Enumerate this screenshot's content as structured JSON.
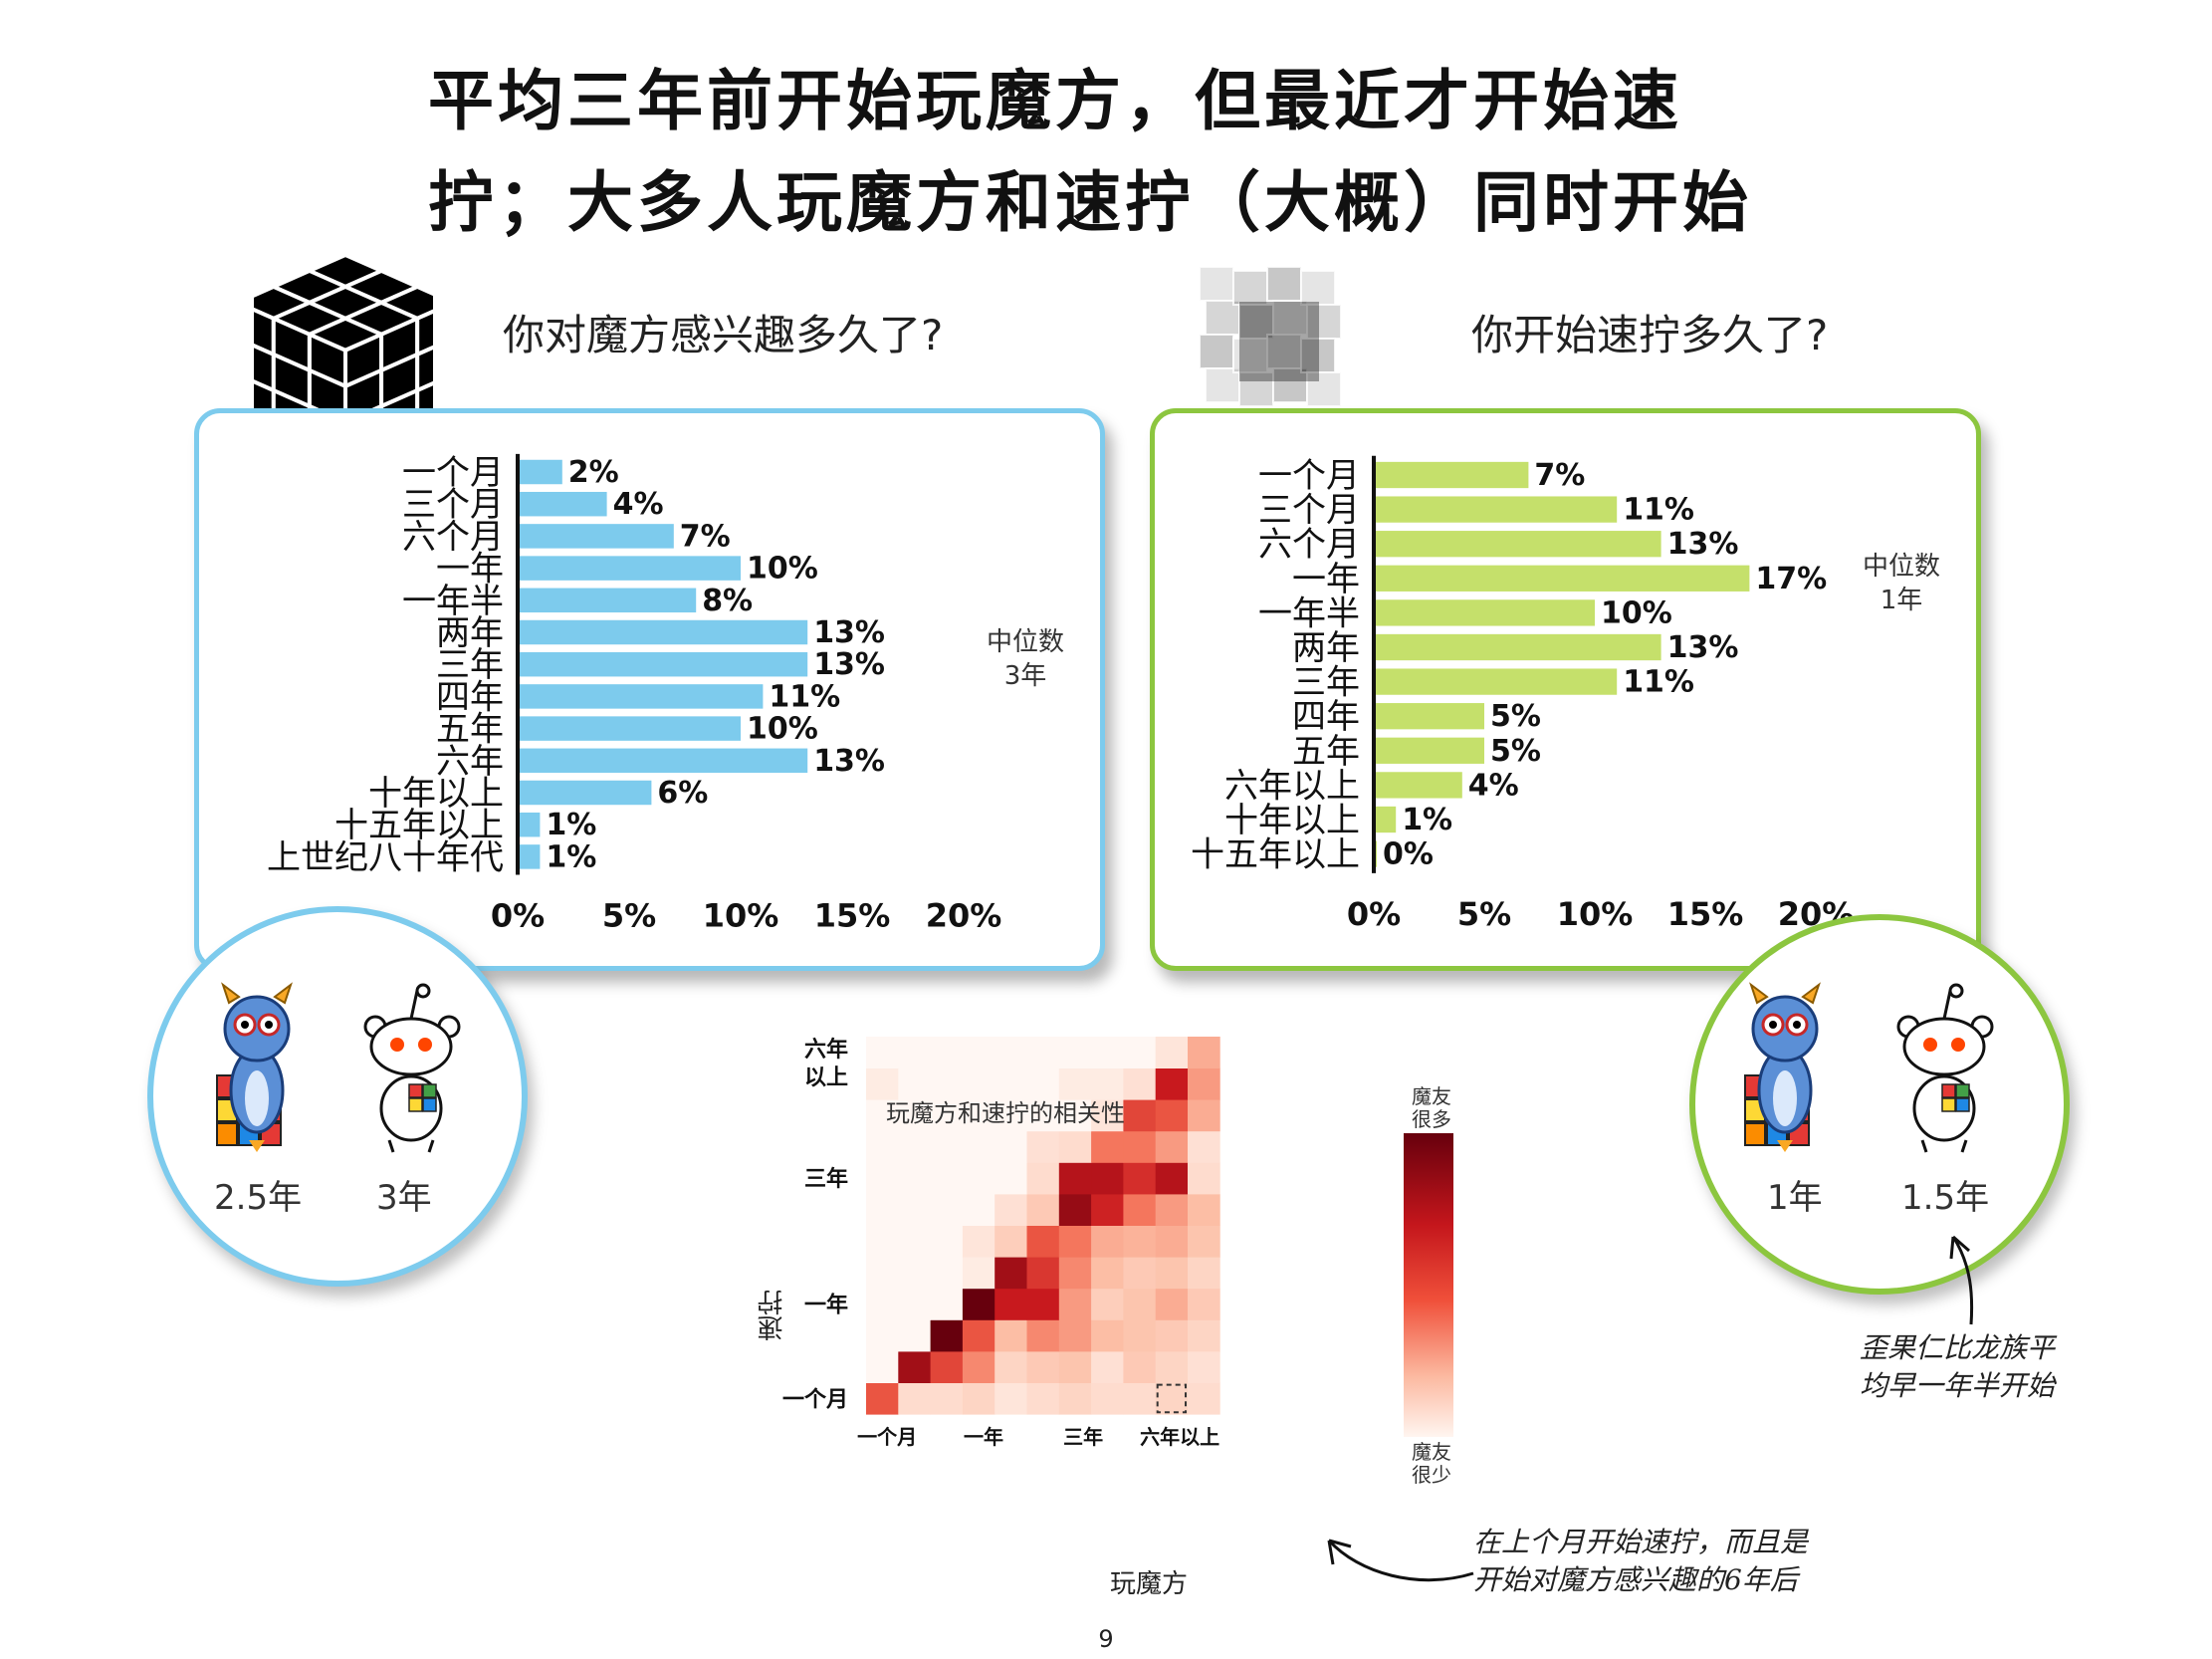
{
  "page": {
    "title_line1": "平均三年前开始玩魔方，但最近才开始速",
    "title_line2": "拧；大多人玩魔方和速拧（大概）同时开始",
    "page_number": "9"
  },
  "left": {
    "question": "你对魔方感兴趣多久了?",
    "median_label": "中位数",
    "median_value": "3年",
    "circle_values": [
      "2.5年",
      "3年"
    ],
    "color": "#7dcbed"
  },
  "right": {
    "question": "你开始速拧多久了?",
    "median_label": "中位数",
    "median_value": "1年",
    "circle_values": [
      "1年",
      "1.5年"
    ],
    "color": "#c5e06b"
  },
  "heatmap": {
    "title": "玩魔方和速拧的相关性",
    "ylabel": "速拧",
    "xlabel": "玩魔方",
    "legend_top": "魔友很多",
    "legend_bottom": "魔友很少"
  },
  "annotations": {
    "note_right": [
      "歪果仁比龙族平",
      "均早一年半开始"
    ],
    "note_bottom": [
      "在上个月开始速拧，而且是",
      "开始对魔方感兴趣的6年后"
    ]
  },
  "chart_data": [
    {
      "type": "bar",
      "orientation": "horizontal",
      "categories": [
        "一个月",
        "三个月",
        "六个月",
        "一年",
        "一年半",
        "两年",
        "三年",
        "四年",
        "五年",
        "六年",
        "十年以上",
        "十五年以上",
        "上世纪八十年代"
      ],
      "values": [
        2,
        4,
        7,
        10,
        8,
        13,
        13,
        11,
        10,
        13,
        6,
        1,
        1
      ],
      "labels": [
        "2%",
        "4%",
        "7%",
        "10%",
        "8%",
        "13%",
        "13%",
        "11%",
        "10%",
        "13%",
        "6%",
        "1%",
        "1%"
      ],
      "xlim": [
        0,
        20
      ],
      "xticks": [
        "0%",
        "5%",
        "10%",
        "15%",
        "20%"
      ],
      "title": "你对魔方感兴趣多久了?"
    },
    {
      "type": "bar",
      "orientation": "horizontal",
      "categories": [
        "一个月",
        "三个月",
        "六个月",
        "一年",
        "一年半",
        "两年",
        "三年",
        "四年",
        "五年",
        "六年以上",
        "十年以上",
        "十五年以上"
      ],
      "values": [
        7,
        11,
        13,
        17,
        10,
        13,
        11,
        5,
        5,
        4,
        1,
        0
      ],
      "labels": [
        "7%",
        "11%",
        "13%",
        "17%",
        "10%",
        "13%",
        "11%",
        "5%",
        "5%",
        "4%",
        "1%",
        "0%"
      ],
      "xlim": [
        0,
        20
      ],
      "xticks": [
        "0%",
        "5%",
        "10%",
        "15%",
        "20%"
      ],
      "title": "你开始速拧多久了?"
    },
    {
      "type": "heatmap",
      "title": "玩魔方和速拧的相关性",
      "x_tick_labels": [
        "一个月",
        "一年",
        "三年",
        "六年以上"
      ],
      "y_tick_labels": [
        "一个月",
        "一年",
        "三年",
        "六年以上"
      ],
      "xlabel": "玩魔方",
      "ylabel": "速拧",
      "rows_bottom_to_top": [
        [
          0.55,
          0.12,
          0.12,
          0.15,
          0.08,
          0.12,
          0.15,
          0.12,
          0.12,
          0.15,
          0.12
        ],
        [
          0,
          0.85,
          0.6,
          0.4,
          0.15,
          0.2,
          0.22,
          0.1,
          0.2,
          0.15,
          0.1
        ],
        [
          0,
          0,
          1.0,
          0.55,
          0.25,
          0.4,
          0.35,
          0.25,
          0.22,
          0.2,
          0.15
        ],
        [
          0,
          0,
          0,
          1.0,
          0.75,
          0.75,
          0.35,
          0.18,
          0.22,
          0.3,
          0.2
        ],
        [
          0,
          0,
          0,
          0.05,
          0.85,
          0.65,
          0.4,
          0.25,
          0.2,
          0.22,
          0.15
        ],
        [
          0,
          0,
          0,
          0.08,
          0.18,
          0.55,
          0.45,
          0.3,
          0.28,
          0.3,
          0.22
        ],
        [
          0,
          0,
          0,
          0,
          0.1,
          0.2,
          0.88,
          0.72,
          0.45,
          0.35,
          0.25
        ],
        [
          0,
          0,
          0,
          0,
          0,
          0.12,
          0.8,
          0.8,
          0.68,
          0.8,
          0.12
        ],
        [
          0,
          0,
          0,
          0,
          0,
          0.1,
          0.12,
          0.45,
          0.45,
          0.35,
          0.1
        ],
        [
          0,
          0,
          0,
          0,
          0,
          0,
          0,
          0.08,
          0.6,
          0.55,
          0.3
        ],
        [
          0.05,
          0,
          0,
          0,
          0,
          0,
          0.05,
          0.05,
          0.1,
          0.75,
          0.35
        ],
        [
          0,
          0,
          0,
          0,
          0,
          0,
          0,
          0,
          0,
          0.08,
          0.3
        ]
      ]
    }
  ]
}
